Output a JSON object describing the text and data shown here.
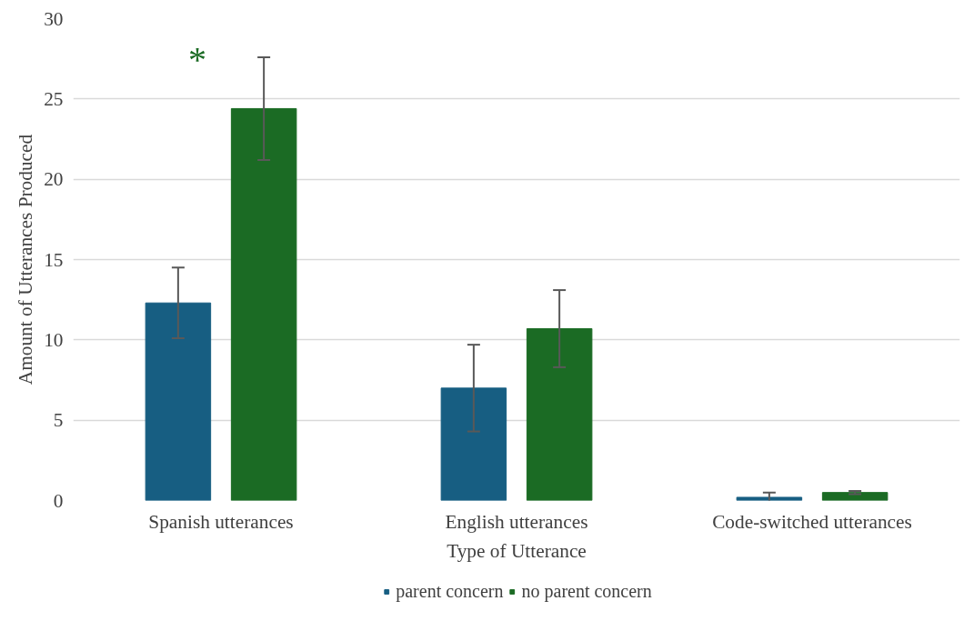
{
  "chart_data": {
    "type": "bar",
    "xlabel": "Type of Utterance",
    "ylabel": "Amount of Utterances Produced",
    "categories": [
      "Spanish utterances",
      "English utterances",
      "Code-switched utterances"
    ],
    "series": [
      {
        "name": "parent concern",
        "color": "#175e82",
        "values": [
          12.3,
          7.0,
          0.2
        ],
        "errors": [
          2.2,
          2.7,
          0.3
        ]
      },
      {
        "name": "no parent concern",
        "color": "#1b6b24",
        "values": [
          24.4,
          10.7,
          0.5
        ],
        "errors": [
          3.2,
          2.4,
          0.1
        ]
      }
    ],
    "ylim": [
      0,
      30
    ],
    "yticks": [
      0,
      5,
      10,
      15,
      20,
      25,
      30
    ],
    "grid": "y",
    "legend": "bottom",
    "annotations": [
      "*"
    ]
  }
}
